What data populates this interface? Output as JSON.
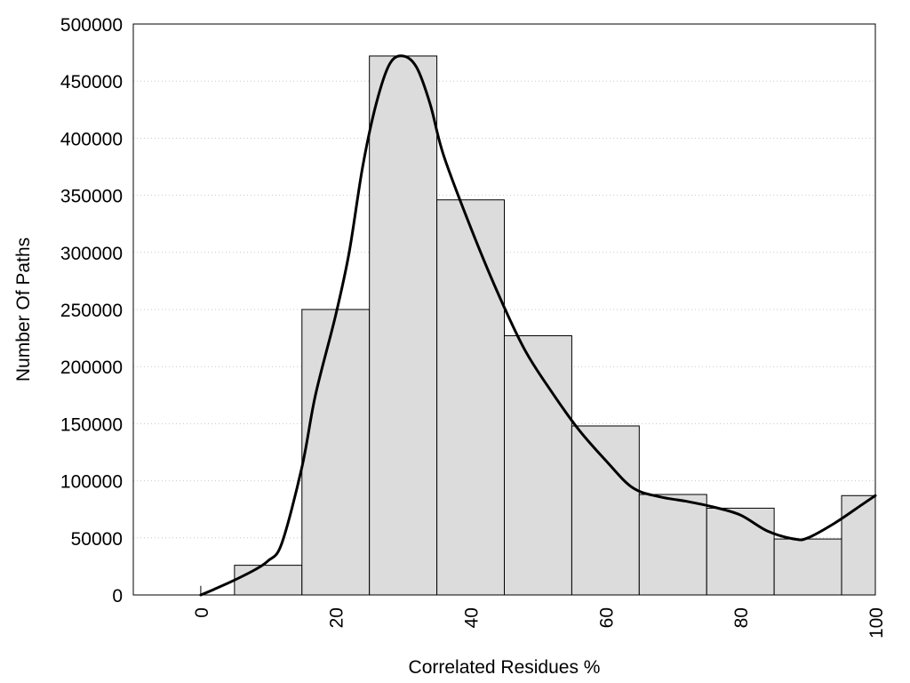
{
  "chart_data": {
    "type": "bar",
    "title": "",
    "xlabel": "Correlated Residues %",
    "ylabel": "Number Of Paths",
    "xlim": [
      -10,
      100
    ],
    "ylim": [
      0,
      500000
    ],
    "x_ticks": [
      0,
      20,
      40,
      60,
      80,
      100
    ],
    "y_ticks": [
      0,
      50000,
      100000,
      150000,
      200000,
      250000,
      300000,
      350000,
      400000,
      450000,
      500000
    ],
    "grid": "horizontal dotted",
    "legend": "none",
    "bar_color": "#dcdcdc",
    "bar_edge_color": "#000000",
    "line_color": "#000000",
    "bins": [
      {
        "from": 0,
        "to": 0,
        "value": 8000
      },
      {
        "from": 5,
        "to": 15,
        "value": 26000
      },
      {
        "from": 15,
        "to": 25,
        "value": 250000
      },
      {
        "from": 25,
        "to": 35,
        "value": 472000
      },
      {
        "from": 35,
        "to": 45,
        "value": 346000
      },
      {
        "from": 45,
        "to": 55,
        "value": 227000
      },
      {
        "from": 55,
        "to": 65,
        "value": 148000
      },
      {
        "from": 65,
        "to": 75,
        "value": 88000
      },
      {
        "from": 75,
        "to": 85,
        "value": 76000
      },
      {
        "from": 85,
        "to": 95,
        "value": 49000
      },
      {
        "from": 95,
        "to": 100,
        "value": 87000
      }
    ],
    "smooth_curve": {
      "x": [
        0,
        2,
        5,
        8,
        10,
        12,
        15,
        17,
        20,
        22,
        24,
        26,
        28,
        30,
        32,
        34,
        36,
        40,
        44,
        48,
        52,
        56,
        60,
        64,
        68,
        72,
        76,
        80,
        84,
        88,
        90,
        94,
        98,
        100
      ],
      "y": [
        0,
        5000,
        13000,
        22000,
        30000,
        45000,
        112000,
        175000,
        245000,
        300000,
        375000,
        430000,
        465000,
        472000,
        462000,
        430000,
        385000,
        322000,
        265000,
        215000,
        178000,
        145000,
        118000,
        94000,
        86000,
        82000,
        77000,
        70000,
        56000,
        49000,
        50000,
        63000,
        79000,
        87000
      ]
    }
  }
}
